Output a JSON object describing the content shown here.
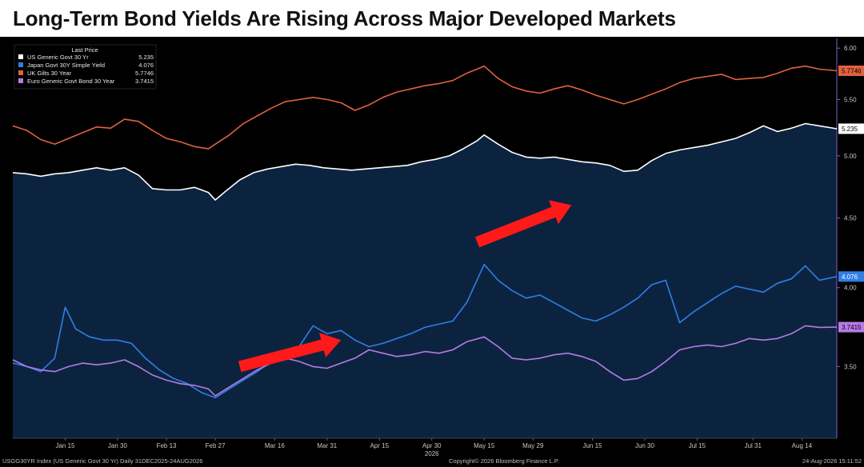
{
  "title": "Long-Term Bond Yields Are Rising Across Major Developed Markets",
  "chart_data": {
    "type": "line",
    "title": "Long-Term Bond Yields Are Rising Across Major Developed Markets",
    "xlabel": "",
    "ylabel": "",
    "y_scale": "log",
    "ylim": [
      3.1,
      6.1
    ],
    "grid": false,
    "x_range": [
      "2025-12-31",
      "2026-08-24"
    ],
    "x_ticks": [
      {
        "label": "Jan 15",
        "date": "2026-01-15"
      },
      {
        "label": "Jan 30",
        "date": "2026-01-30"
      },
      {
        "label": "Feb 13",
        "date": "2026-02-13"
      },
      {
        "label": "Feb 27",
        "date": "2026-02-27"
      },
      {
        "label": "Mar 16",
        "date": "2026-03-16"
      },
      {
        "label": "Mar 31",
        "date": "2026-03-31"
      },
      {
        "label": "Apr 15",
        "date": "2026-04-15"
      },
      {
        "label": "Apr 30",
        "date": "2026-04-30"
      },
      {
        "label": "May 15",
        "date": "2026-05-15"
      },
      {
        "label": "May 29",
        "date": "2026-05-29"
      },
      {
        "label": "Jun 15",
        "date": "2026-06-15"
      },
      {
        "label": "Jun 30",
        "date": "2026-06-30"
      },
      {
        "label": "Jul 15",
        "date": "2026-07-15"
      },
      {
        "label": "Jul 31",
        "date": "2026-07-31"
      },
      {
        "label": "Aug 14",
        "date": "2026-08-14"
      }
    ],
    "year_label": "2026",
    "y_ticks": [
      "3.50",
      "4.00",
      "4.50",
      "5.00",
      "5.50",
      "6.00"
    ],
    "legend_header": "Last Price",
    "legend_position": "top-left",
    "series": [
      {
        "name": "US Generic Govt 30 Yr",
        "last": "5.235",
        "color": "#ffffff",
        "tag_text_color": "#000000",
        "fill_color": "#0c2340",
        "points": [
          [
            "2025-12-31",
            4.86
          ],
          [
            "2026-01-04",
            4.85
          ],
          [
            "2026-01-08",
            4.83
          ],
          [
            "2026-01-12",
            4.85
          ],
          [
            "2026-01-16",
            4.86
          ],
          [
            "2026-01-20",
            4.88
          ],
          [
            "2026-01-24",
            4.9
          ],
          [
            "2026-01-28",
            4.88
          ],
          [
            "2026-02-01",
            4.9
          ],
          [
            "2026-02-05",
            4.84
          ],
          [
            "2026-02-09",
            4.73
          ],
          [
            "2026-02-13",
            4.72
          ],
          [
            "2026-02-17",
            4.72
          ],
          [
            "2026-02-21",
            4.74
          ],
          [
            "2026-02-25",
            4.7
          ],
          [
            "2026-02-27",
            4.64
          ],
          [
            "2026-03-02",
            4.71
          ],
          [
            "2026-03-06",
            4.8
          ],
          [
            "2026-03-10",
            4.86
          ],
          [
            "2026-03-14",
            4.89
          ],
          [
            "2026-03-18",
            4.91
          ],
          [
            "2026-03-22",
            4.93
          ],
          [
            "2026-03-26",
            4.92
          ],
          [
            "2026-03-30",
            4.9
          ],
          [
            "2026-04-03",
            4.89
          ],
          [
            "2026-04-07",
            4.88
          ],
          [
            "2026-04-11",
            4.89
          ],
          [
            "2026-04-15",
            4.9
          ],
          [
            "2026-04-19",
            4.91
          ],
          [
            "2026-04-23",
            4.92
          ],
          [
            "2026-04-27",
            4.95
          ],
          [
            "2026-05-01",
            4.97
          ],
          [
            "2026-05-05",
            5.0
          ],
          [
            "2026-05-09",
            5.06
          ],
          [
            "2026-05-13",
            5.13
          ],
          [
            "2026-05-15",
            5.18
          ],
          [
            "2026-05-19",
            5.1
          ],
          [
            "2026-05-23",
            5.03
          ],
          [
            "2026-05-27",
            4.99
          ],
          [
            "2026-05-31",
            4.98
          ],
          [
            "2026-06-04",
            4.99
          ],
          [
            "2026-06-08",
            4.97
          ],
          [
            "2026-06-12",
            4.95
          ],
          [
            "2026-06-16",
            4.94
          ],
          [
            "2026-06-20",
            4.92
          ],
          [
            "2026-06-24",
            4.87
          ],
          [
            "2026-06-28",
            4.88
          ],
          [
            "2026-07-02",
            4.96
          ],
          [
            "2026-07-06",
            5.02
          ],
          [
            "2026-07-10",
            5.05
          ],
          [
            "2026-07-14",
            5.07
          ],
          [
            "2026-07-18",
            5.09
          ],
          [
            "2026-07-22",
            5.12
          ],
          [
            "2026-07-26",
            5.15
          ],
          [
            "2026-07-30",
            5.2
          ],
          [
            "2026-08-03",
            5.26
          ],
          [
            "2026-08-07",
            5.21
          ],
          [
            "2026-08-11",
            5.24
          ],
          [
            "2026-08-15",
            5.28
          ],
          [
            "2026-08-19",
            5.26
          ],
          [
            "2026-08-24",
            5.235
          ]
        ]
      },
      {
        "name": "Japan Govt 30Y Simple Yield",
        "last": "4.076",
        "color": "#2f7fe6",
        "tag_text_color": "#ffffff",
        "points": [
          [
            "2025-12-31",
            3.52
          ],
          [
            "2026-01-04",
            3.5
          ],
          [
            "2026-01-08",
            3.47
          ],
          [
            "2026-01-12",
            3.55
          ],
          [
            "2026-01-15",
            3.87
          ],
          [
            "2026-01-18",
            3.73
          ],
          [
            "2026-01-22",
            3.68
          ],
          [
            "2026-01-26",
            3.66
          ],
          [
            "2026-01-30",
            3.66
          ],
          [
            "2026-02-03",
            3.64
          ],
          [
            "2026-02-07",
            3.55
          ],
          [
            "2026-02-11",
            3.48
          ],
          [
            "2026-02-15",
            3.43
          ],
          [
            "2026-02-19",
            3.4
          ],
          [
            "2026-02-23",
            3.35
          ],
          [
            "2026-02-27",
            3.32
          ],
          [
            "2026-03-03",
            3.37
          ],
          [
            "2026-03-07",
            3.42
          ],
          [
            "2026-03-11",
            3.47
          ],
          [
            "2026-03-15",
            3.53
          ],
          [
            "2026-03-19",
            3.58
          ],
          [
            "2026-03-23",
            3.62
          ],
          [
            "2026-03-27",
            3.75
          ],
          [
            "2026-03-31",
            3.7
          ],
          [
            "2026-04-04",
            3.72
          ],
          [
            "2026-04-08",
            3.66
          ],
          [
            "2026-04-12",
            3.62
          ],
          [
            "2026-04-16",
            3.64
          ],
          [
            "2026-04-20",
            3.67
          ],
          [
            "2026-04-24",
            3.7
          ],
          [
            "2026-04-28",
            3.74
          ],
          [
            "2026-05-02",
            3.76
          ],
          [
            "2026-05-06",
            3.78
          ],
          [
            "2026-05-10",
            3.9
          ],
          [
            "2026-05-15",
            4.16
          ],
          [
            "2026-05-19",
            4.05
          ],
          [
            "2026-05-23",
            3.98
          ],
          [
            "2026-05-27",
            3.93
          ],
          [
            "2026-05-31",
            3.95
          ],
          [
            "2026-06-04",
            3.9
          ],
          [
            "2026-06-08",
            3.85
          ],
          [
            "2026-06-12",
            3.8
          ],
          [
            "2026-06-16",
            3.78
          ],
          [
            "2026-06-20",
            3.82
          ],
          [
            "2026-06-24",
            3.87
          ],
          [
            "2026-06-28",
            3.93
          ],
          [
            "2026-07-02",
            4.02
          ],
          [
            "2026-07-06",
            4.05
          ],
          [
            "2026-07-10",
            3.77
          ],
          [
            "2026-07-14",
            3.84
          ],
          [
            "2026-07-18",
            3.9
          ],
          [
            "2026-07-22",
            3.96
          ],
          [
            "2026-07-26",
            4.01
          ],
          [
            "2026-07-30",
            3.99
          ],
          [
            "2026-08-03",
            3.97
          ],
          [
            "2026-08-07",
            4.03
          ],
          [
            "2026-08-11",
            4.06
          ],
          [
            "2026-08-15",
            4.15
          ],
          [
            "2026-08-19",
            4.05
          ],
          [
            "2026-08-24",
            4.076
          ]
        ]
      },
      {
        "name": "UK Gilts 30 Year",
        "last": "5.7746",
        "color": "#e0623f",
        "tag_text_color": "#000000",
        "points": [
          [
            "2025-12-31",
            5.26
          ],
          [
            "2026-01-04",
            5.22
          ],
          [
            "2026-01-08",
            5.14
          ],
          [
            "2026-01-12",
            5.1
          ],
          [
            "2026-01-16",
            5.15
          ],
          [
            "2026-01-20",
            5.2
          ],
          [
            "2026-01-24",
            5.25
          ],
          [
            "2026-01-28",
            5.24
          ],
          [
            "2026-02-01",
            5.32
          ],
          [
            "2026-02-05",
            5.3
          ],
          [
            "2026-02-09",
            5.22
          ],
          [
            "2026-02-13",
            5.15
          ],
          [
            "2026-02-17",
            5.12
          ],
          [
            "2026-02-21",
            5.08
          ],
          [
            "2026-02-25",
            5.06
          ],
          [
            "2026-02-27",
            5.1
          ],
          [
            "2026-03-03",
            5.18
          ],
          [
            "2026-03-07",
            5.28
          ],
          [
            "2026-03-11",
            5.35
          ],
          [
            "2026-03-15",
            5.42
          ],
          [
            "2026-03-19",
            5.48
          ],
          [
            "2026-03-23",
            5.5
          ],
          [
            "2026-03-27",
            5.52
          ],
          [
            "2026-03-31",
            5.5
          ],
          [
            "2026-04-04",
            5.47
          ],
          [
            "2026-04-08",
            5.4
          ],
          [
            "2026-04-12",
            5.45
          ],
          [
            "2026-04-16",
            5.52
          ],
          [
            "2026-04-20",
            5.57
          ],
          [
            "2026-04-24",
            5.6
          ],
          [
            "2026-04-28",
            5.63
          ],
          [
            "2026-05-02",
            5.65
          ],
          [
            "2026-05-06",
            5.68
          ],
          [
            "2026-05-10",
            5.75
          ],
          [
            "2026-05-15",
            5.82
          ],
          [
            "2026-05-19",
            5.7
          ],
          [
            "2026-05-23",
            5.62
          ],
          [
            "2026-05-27",
            5.58
          ],
          [
            "2026-05-31",
            5.56
          ],
          [
            "2026-06-04",
            5.6
          ],
          [
            "2026-06-08",
            5.63
          ],
          [
            "2026-06-12",
            5.59
          ],
          [
            "2026-06-16",
            5.54
          ],
          [
            "2026-06-20",
            5.5
          ],
          [
            "2026-06-24",
            5.46
          ],
          [
            "2026-06-28",
            5.5
          ],
          [
            "2026-07-02",
            5.55
          ],
          [
            "2026-07-06",
            5.6
          ],
          [
            "2026-07-10",
            5.66
          ],
          [
            "2026-07-14",
            5.7
          ],
          [
            "2026-07-18",
            5.72
          ],
          [
            "2026-07-22",
            5.74
          ],
          [
            "2026-07-26",
            5.69
          ],
          [
            "2026-07-30",
            5.7
          ],
          [
            "2026-08-03",
            5.71
          ],
          [
            "2026-08-07",
            5.75
          ],
          [
            "2026-08-11",
            5.8
          ],
          [
            "2026-08-15",
            5.82
          ],
          [
            "2026-08-19",
            5.79
          ],
          [
            "2026-08-24",
            5.7746
          ]
        ]
      },
      {
        "name": "Euro Generic Govt Bond 30 Year",
        "last": "3.7415",
        "color": "#b77be6",
        "tag_text_color": "#000000",
        "points": [
          [
            "2025-12-31",
            3.54
          ],
          [
            "2026-01-04",
            3.5
          ],
          [
            "2026-01-08",
            3.48
          ],
          [
            "2026-01-12",
            3.47
          ],
          [
            "2026-01-16",
            3.5
          ],
          [
            "2026-01-20",
            3.52
          ],
          [
            "2026-01-24",
            3.51
          ],
          [
            "2026-01-28",
            3.52
          ],
          [
            "2026-02-01",
            3.54
          ],
          [
            "2026-02-05",
            3.5
          ],
          [
            "2026-02-09",
            3.45
          ],
          [
            "2026-02-13",
            3.42
          ],
          [
            "2026-02-17",
            3.4
          ],
          [
            "2026-02-21",
            3.39
          ],
          [
            "2026-02-25",
            3.37
          ],
          [
            "2026-02-27",
            3.33
          ],
          [
            "2026-03-03",
            3.38
          ],
          [
            "2026-03-07",
            3.43
          ],
          [
            "2026-03-11",
            3.48
          ],
          [
            "2026-03-15",
            3.52
          ],
          [
            "2026-03-19",
            3.55
          ],
          [
            "2026-03-23",
            3.53
          ],
          [
            "2026-03-27",
            3.5
          ],
          [
            "2026-03-31",
            3.49
          ],
          [
            "2026-04-04",
            3.52
          ],
          [
            "2026-04-08",
            3.55
          ],
          [
            "2026-04-12",
            3.6
          ],
          [
            "2026-04-16",
            3.58
          ],
          [
            "2026-04-20",
            3.56
          ],
          [
            "2026-04-24",
            3.57
          ],
          [
            "2026-04-28",
            3.59
          ],
          [
            "2026-05-02",
            3.58
          ],
          [
            "2026-05-06",
            3.6
          ],
          [
            "2026-05-10",
            3.65
          ],
          [
            "2026-05-15",
            3.68
          ],
          [
            "2026-05-19",
            3.62
          ],
          [
            "2026-05-23",
            3.55
          ],
          [
            "2026-05-27",
            3.54
          ],
          [
            "2026-05-31",
            3.55
          ],
          [
            "2026-06-04",
            3.57
          ],
          [
            "2026-06-08",
            3.58
          ],
          [
            "2026-06-12",
            3.56
          ],
          [
            "2026-06-16",
            3.53
          ],
          [
            "2026-06-20",
            3.47
          ],
          [
            "2026-06-24",
            3.42
          ],
          [
            "2026-06-28",
            3.43
          ],
          [
            "2026-07-02",
            3.47
          ],
          [
            "2026-07-06",
            3.53
          ],
          [
            "2026-07-10",
            3.6
          ],
          [
            "2026-07-14",
            3.62
          ],
          [
            "2026-07-18",
            3.63
          ],
          [
            "2026-07-22",
            3.62
          ],
          [
            "2026-07-26",
            3.64
          ],
          [
            "2026-07-30",
            3.67
          ],
          [
            "2026-08-03",
            3.66
          ],
          [
            "2026-08-07",
            3.67
          ],
          [
            "2026-08-11",
            3.7
          ],
          [
            "2026-08-15",
            3.75
          ],
          [
            "2026-08-19",
            3.74
          ],
          [
            "2026-08-24",
            3.7415
          ]
        ]
      }
    ],
    "annotations": [
      {
        "type": "arrow",
        "color": "#ff1a1a",
        "from": [
          "2026-03-06",
          3.5
        ],
        "to": [
          "2026-04-04",
          3.66
        ]
      },
      {
        "type": "arrow",
        "color": "#ff1a1a",
        "from": [
          "2026-05-13",
          4.32
        ],
        "to": [
          "2026-06-09",
          4.6
        ]
      }
    ]
  },
  "footer": {
    "left": "USGG30YR Index (US Generic Govt 30 Yr) Daily 31DEC2025-24AUG2026",
    "center": "Copyright© 2026 Bloomberg Finance L.P.",
    "right": "24-Aug-2026 15:11:52"
  }
}
